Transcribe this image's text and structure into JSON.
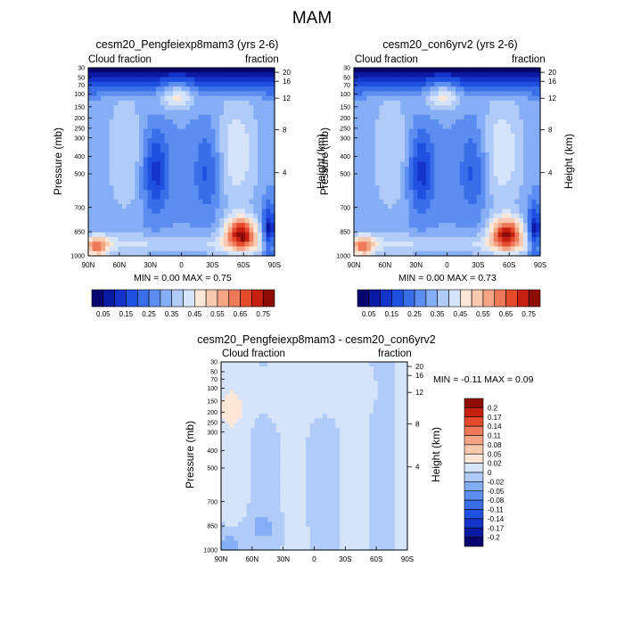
{
  "main_title": "MAM",
  "chart_data": [
    {
      "type": "heatmap",
      "title": "cesm20_Pengfeiexp8mam3 (yrs 2-6)",
      "left_subtitle": "Cloud fraction",
      "right_subtitle": "fraction",
      "ylabel": "Pressure (mb)",
      "y2label": "Height (km)",
      "x_ticks": [
        "90N",
        "60N",
        "30N",
        "0",
        "30S",
        "60S",
        "90S"
      ],
      "y_ticks": [
        "30",
        "50",
        "70",
        "100",
        "150",
        "200",
        "250",
        "300",
        "400",
        "500",
        "700",
        "850",
        "1000"
      ],
      "y2_ticks": [
        "20",
        "16",
        "12",
        "8",
        "4"
      ],
      "min_max_text": "MIN =   0.00   MAX =   0.75",
      "colorbar_labels": [
        "0.05",
        "0.15",
        "0.25",
        "0.35",
        "0.45",
        "0.55",
        "0.65",
        "0.75"
      ],
      "colormap": [
        "#08066e",
        "#0b1aa3",
        "#1433c9",
        "#2050e0",
        "#3a6ee8",
        "#5c8df0",
        "#86aef4",
        "#b0cbf7",
        "#d6e4f9",
        "#fbe6d8",
        "#f7c9af",
        "#f3a585",
        "#ee7a5a",
        "#e44a2c",
        "#c52012",
        "#8e0c08"
      ],
      "field_id": "exp"
    },
    {
      "type": "heatmap",
      "title": "cesm20_con6yrv2 (yrs 2-6)",
      "left_subtitle": "Cloud fraction",
      "right_subtitle": "fraction",
      "ylabel": "Pressure (mb)",
      "y2label": "Height (km)",
      "x_ticks": [
        "90N",
        "60N",
        "30N",
        "0",
        "30S",
        "60S",
        "90S"
      ],
      "y_ticks": [
        "30",
        "50",
        "70",
        "100",
        "150",
        "200",
        "250",
        "300",
        "400",
        "500",
        "700",
        "850",
        "1000"
      ],
      "y2_ticks": [
        "20",
        "16",
        "12",
        "8",
        "4"
      ],
      "min_max_text": "MIN =   0.00   MAX =   0.73",
      "colorbar_labels": [
        "0.05",
        "0.15",
        "0.25",
        "0.35",
        "0.45",
        "0.55",
        "0.65",
        "0.75"
      ],
      "colormap": [
        "#08066e",
        "#0b1aa3",
        "#1433c9",
        "#2050e0",
        "#3a6ee8",
        "#5c8df0",
        "#86aef4",
        "#b0cbf7",
        "#d6e4f9",
        "#fbe6d8",
        "#f7c9af",
        "#f3a585",
        "#ee7a5a",
        "#e44a2c",
        "#c52012",
        "#8e0c08"
      ],
      "field_id": "ctl"
    },
    {
      "type": "heatmap",
      "title": "cesm20_Pengfeiexp8mam3 - cesm20_con6yrv2",
      "left_subtitle": "Cloud fraction",
      "right_subtitle": "fraction",
      "ylabel": "Pressure (mb)",
      "y2label": "Height (km)",
      "x_ticks": [
        "90N",
        "60N",
        "30N",
        "0",
        "30S",
        "60S",
        "90S"
      ],
      "y_ticks": [
        "30",
        "50",
        "70",
        "100",
        "150",
        "200",
        "250",
        "300",
        "400",
        "500",
        "700",
        "850",
        "1000"
      ],
      "y2_ticks": [
        "20",
        "16",
        "12",
        "8",
        "4"
      ],
      "min_max_text": "MIN =  -0.11   MAX =   0.09",
      "colorbar_labels": [
        "0.2",
        "0.17",
        "0.14",
        "0.11",
        "0.08",
        "0.05",
        "0.02",
        "0",
        "-0.02",
        "-0.05",
        "-0.08",
        "-0.11",
        "-0.14",
        "-0.17",
        "-0.2"
      ],
      "colormap": [
        "#08066e",
        "#0b1aa3",
        "#1433c9",
        "#2050e0",
        "#3a6ee8",
        "#5c8df0",
        "#86aef4",
        "#b0cbf7",
        "#d6e4f9",
        "#fbe6d8",
        "#f7c9af",
        "#f3a585",
        "#ee7a5a",
        "#e44a2c",
        "#c52012",
        "#8e0c08"
      ],
      "field_id": "diff"
    }
  ]
}
